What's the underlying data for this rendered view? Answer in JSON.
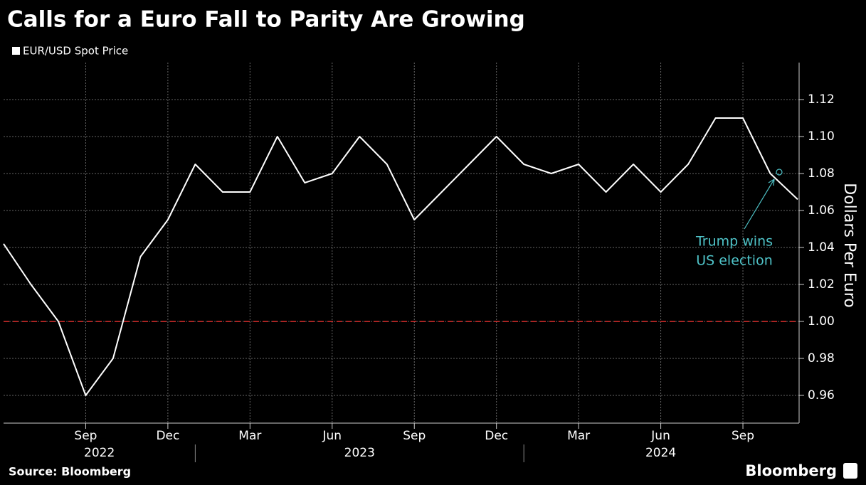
{
  "chart_data": {
    "type": "line",
    "title": "Calls for a Euro Fall to Parity Are Growing",
    "y_axis_label": "Dollars Per Euro",
    "source": "Source: Bloomberg",
    "brand": "Bloomberg",
    "annotation": [
      "Trump wins",
      "US election"
    ],
    "x": [
      "2022-06",
      "2022-07",
      "2022-08",
      "2022-09",
      "2022-10",
      "2022-11",
      "2022-12",
      "2023-01",
      "2023-02",
      "2023-03",
      "2023-04",
      "2023-05",
      "2023-06",
      "2023-07",
      "2023-08",
      "2023-09",
      "2023-10",
      "2023-11",
      "2023-12",
      "2024-01",
      "2024-02",
      "2024-03",
      "2024-04",
      "2024-05",
      "2024-06",
      "2024-07",
      "2024-08",
      "2024-09",
      "2024-10",
      "2024-11"
    ],
    "series": [
      {
        "name": "EUR/USD Spot Price",
        "color": "#ffffff",
        "values": [
          1.042,
          1.02,
          1.0,
          0.96,
          0.98,
          1.035,
          1.055,
          1.085,
          1.07,
          1.07,
          1.1,
          1.075,
          1.08,
          1.1,
          1.085,
          1.055,
          1.07,
          1.085,
          1.1,
          1.085,
          1.08,
          1.085,
          1.07,
          1.085,
          1.07,
          1.085,
          1.11,
          1.11,
          1.08,
          1.066
        ]
      }
    ],
    "xlim": [
      "2022-06",
      "2024-11"
    ],
    "xticks": [
      {
        "value": "2022-09",
        "label": "Sep"
      },
      {
        "value": "2022-12",
        "label": "Dec"
      },
      {
        "value": "2023-03",
        "label": "Mar"
      },
      {
        "value": "2023-06",
        "label": "Jun"
      },
      {
        "value": "2023-09",
        "label": "Sep"
      },
      {
        "value": "2023-12",
        "label": "Dec"
      },
      {
        "value": "2024-03",
        "label": "Mar"
      },
      {
        "value": "2024-06",
        "label": "Jun"
      },
      {
        "value": "2024-09",
        "label": "Sep"
      }
    ],
    "year_labels": [
      "2022",
      "2023",
      "2024"
    ],
    "ylim": [
      0.945,
      1.14
    ],
    "yticks": [
      0.96,
      0.98,
      {
        "value": 1.0,
        "label": "1.00"
      },
      1.02,
      1.04,
      1.06,
      1.08,
      {
        "value": 1.1,
        "label": "1.10"
      },
      1.12
    ],
    "reference_line": 1.0,
    "reference_color": "#e0312f",
    "grid": true
  }
}
